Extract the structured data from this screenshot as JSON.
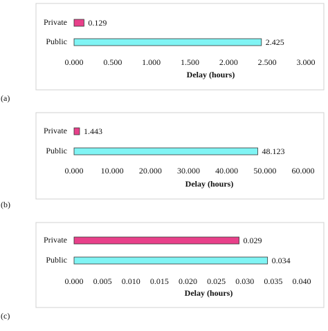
{
  "chart_data": [
    {
      "type": "bar",
      "panel_label": "(a)",
      "x_label": "Delay (hours)",
      "categories": [
        "Private",
        "Public"
      ],
      "values": [
        0.129,
        2.425
      ],
      "colors": [
        "#e8408a",
        "#80f4f4"
      ],
      "xlim": [
        0,
        3
      ],
      "xticks": [
        {
          "value": 0,
          "label": "0.000"
        },
        {
          "value": 0.5,
          "label": "0.500"
        },
        {
          "value": 1,
          "label": "1.000"
        },
        {
          "value": 1.5,
          "label": "1.500"
        },
        {
          "value": 2,
          "label": "2.000"
        },
        {
          "value": 2.5,
          "label": "2.500"
        },
        {
          "value": 3,
          "label": "3.000"
        }
      ]
    },
    {
      "type": "bar",
      "panel_label": "(b)",
      "x_label": "Delay (hours)",
      "categories": [
        "Private",
        "Public"
      ],
      "values": [
        1.443,
        48.123
      ],
      "colors": [
        "#e8408a",
        "#80f4f4"
      ],
      "xlim": [
        0,
        60
      ],
      "xticks": [
        {
          "value": 0,
          "label": "0.000"
        },
        {
          "value": 10,
          "label": "10.000"
        },
        {
          "value": 20,
          "label": "20.000"
        },
        {
          "value": 30,
          "label": "30.000"
        },
        {
          "value": 40,
          "label": "40.000"
        },
        {
          "value": 50,
          "label": "50.000"
        },
        {
          "value": 60,
          "label": "60.000"
        }
      ]
    },
    {
      "type": "bar",
      "panel_label": "(c)",
      "x_label": "Delay (hours)",
      "categories": [
        "Private",
        "Public"
      ],
      "values": [
        0.029,
        0.034
      ],
      "colors": [
        "#e8408a",
        "#80f4f4"
      ],
      "xlim": [
        0,
        0.04
      ],
      "xticks": [
        {
          "value": 0,
          "label": "0.000"
        },
        0.005,
        {
          "value": 0.01,
          "label": "0.010"
        },
        0.015,
        {
          "value": 0.02,
          "label": "0.020"
        },
        0.025,
        {
          "value": 0.03,
          "label": "0.030"
        },
        0.035,
        {
          "value": 0.04,
          "label": "0.040"
        }
      ]
    }
  ]
}
